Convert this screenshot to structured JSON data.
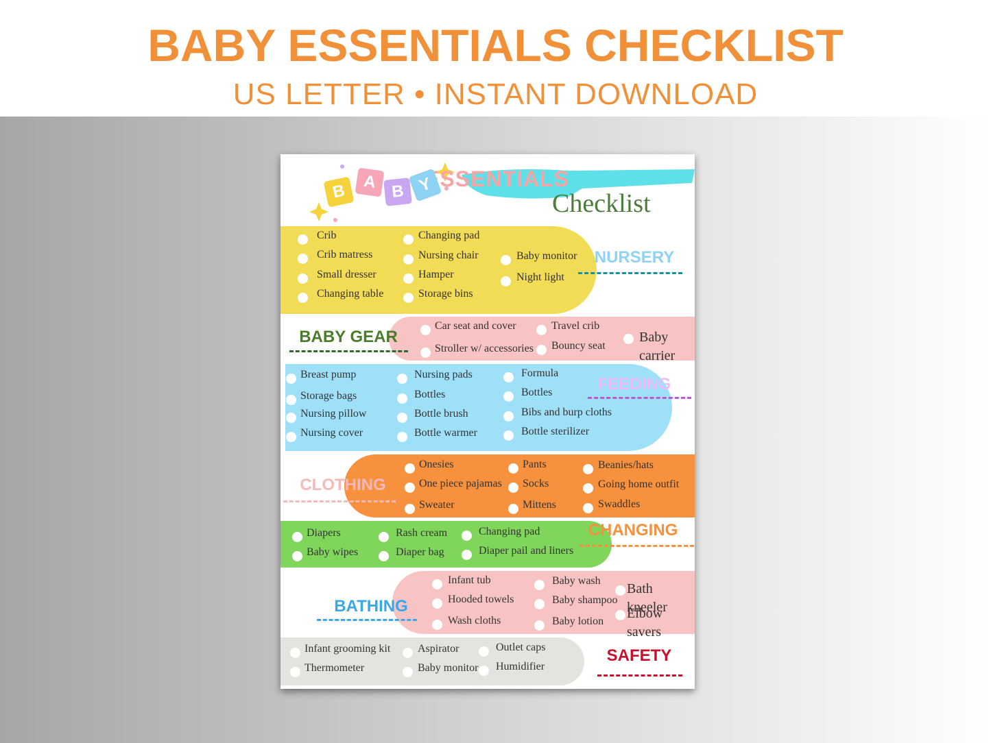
{
  "header": {
    "title": "BABY ESSENTIALS CHECKLIST",
    "subtitle": "US LETTER • INSTANT DOWNLOAD"
  },
  "sheet": {
    "logo": [
      "B",
      "A",
      "B",
      "Y"
    ],
    "heading": "ESSENTIALS",
    "script": "Checklist",
    "sections": [
      {
        "label": "NURSERY",
        "columns": [
          [
            "Crib",
            "Crib matress",
            "Small dresser",
            "Changing table"
          ],
          [
            "Changing  pad",
            "Nursing chair",
            "Hamper",
            "Storage bins"
          ],
          [
            "Baby monitor",
            "Night light"
          ]
        ]
      },
      {
        "label": "BABY GEAR",
        "columns": [
          [
            "Car seat and cover",
            "Stroller w/ accessories"
          ],
          [
            "Travel crib",
            "Bouncy seat"
          ],
          [
            "Baby carrier"
          ]
        ]
      },
      {
        "label": "FEEDING",
        "columns": [
          [
            "Breast pump",
            "Storage bags",
            "Nursing pillow",
            "Nursing cover"
          ],
          [
            "Nursing pads",
            "Bottles",
            "Bottle brush",
            "Bottle warmer"
          ],
          [
            "Formula",
            "Bottles",
            "Bibs and burp cloths",
            "Bottle sterilizer"
          ]
        ]
      },
      {
        "label": "CLOTHING",
        "columns": [
          [
            "Onesies",
            "One piece pajamas",
            "Sweater"
          ],
          [
            "Pants",
            "Socks",
            "Mittens"
          ],
          [
            "Beanies/hats",
            "Going home outfit",
            "Swaddles"
          ]
        ]
      },
      {
        "label": "CHANGING",
        "columns": [
          [
            "Diapers",
            "Baby wipes"
          ],
          [
            "Rash cream",
            "Diaper bag"
          ],
          [
            "Changing pad",
            "Diaper pail and liners"
          ]
        ]
      },
      {
        "label": "BATHING",
        "columns": [
          [
            "Infant tub",
            "Hooded towels",
            "Wash cloths"
          ],
          [
            "Baby wash",
            "Baby shampoo",
            "Baby lotion"
          ],
          [
            "Bath kneeler",
            "Elbow savers"
          ]
        ]
      },
      {
        "label": "SAFETY",
        "columns": [
          [
            "Infant grooming kit",
            "Thermometer"
          ],
          [
            "Aspirator",
            "Baby monitor"
          ],
          [
            "Outlet caps",
            "Humidifier"
          ]
        ]
      }
    ]
  }
}
